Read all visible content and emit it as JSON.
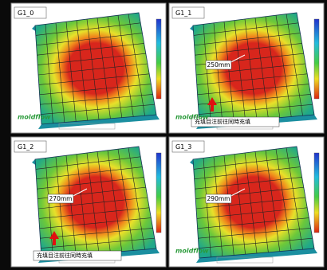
{
  "panels": [
    {
      "title": "G1_0",
      "logo": "moldflow"
    },
    {
      "title": "G1_1",
      "annotation": "250mm",
      "note": "充填目注前往同時充填",
      "logo": "moldflow"
    },
    {
      "title": "G1_2",
      "annotation": "270mm",
      "note": "充填目注前往同時充填"
    },
    {
      "title": "G1_3",
      "annotation": "290mm",
      "logo": "moldflow"
    }
  ]
}
